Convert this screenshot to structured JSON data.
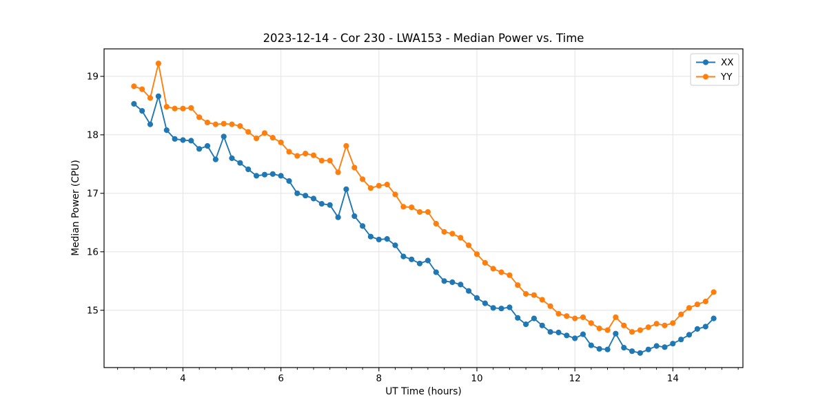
{
  "chart_data": {
    "type": "line",
    "title": "2023-12-14 - Cor 230 - LWA153 - Median Power vs. Time",
    "xlabel": "UT Time (hours)",
    "ylabel": "Median Power (CPU)",
    "xlim": [
      2.39,
      15.43
    ],
    "ylim": [
      14.02,
      19.47
    ],
    "x_major_ticks": [
      4,
      6,
      8,
      10,
      12,
      14
    ],
    "x_minor_tick_step": 0.33333,
    "y_major_ticks": [
      15,
      16,
      17,
      18,
      19
    ],
    "grid": true,
    "grid_color": "#e3e3e3",
    "legend": {
      "position": "upper right",
      "entries": [
        "XX",
        "YY"
      ]
    },
    "x": [
      3.0,
      3.167,
      3.333,
      3.5,
      3.667,
      3.833,
      4.0,
      4.167,
      4.333,
      4.5,
      4.667,
      4.833,
      5.0,
      5.167,
      5.333,
      5.5,
      5.667,
      5.833,
      6.0,
      6.167,
      6.333,
      6.5,
      6.667,
      6.833,
      7.0,
      7.167,
      7.333,
      7.5,
      7.667,
      7.833,
      8.0,
      8.167,
      8.333,
      8.5,
      8.667,
      8.833,
      9.0,
      9.167,
      9.333,
      9.5,
      9.667,
      9.833,
      10.0,
      10.167,
      10.333,
      10.5,
      10.667,
      10.833,
      11.0,
      11.167,
      11.333,
      11.5,
      11.667,
      11.833,
      12.0,
      12.167,
      12.333,
      12.5,
      12.667,
      12.833,
      13.0,
      13.167,
      13.333,
      13.5,
      13.667,
      13.833,
      14.0,
      14.167,
      14.333,
      14.5,
      14.667,
      14.833
    ],
    "series": [
      {
        "name": "XX",
        "color": "#1f77b4",
        "values": [
          18.53,
          18.41,
          18.18,
          18.66,
          18.08,
          17.93,
          17.91,
          17.9,
          17.76,
          17.81,
          17.58,
          17.97,
          17.6,
          17.52,
          17.41,
          17.3,
          17.32,
          17.33,
          17.3,
          17.21,
          17.0,
          16.96,
          16.91,
          16.82,
          16.8,
          16.59,
          17.07,
          16.61,
          16.44,
          16.26,
          16.21,
          16.22,
          16.11,
          15.92,
          15.87,
          15.8,
          15.85,
          15.65,
          15.5,
          15.48,
          15.44,
          15.33,
          15.21,
          15.12,
          15.04,
          15.03,
          15.05,
          14.87,
          14.76,
          14.86,
          14.74,
          14.63,
          14.62,
          14.57,
          14.52,
          14.59,
          14.4,
          14.34,
          14.33,
          14.6,
          14.36,
          14.3,
          14.27,
          14.33,
          14.39,
          14.37,
          14.43,
          14.5,
          14.58,
          14.68,
          14.72,
          14.86
        ]
      },
      {
        "name": "YY",
        "color": "#ff7f0e",
        "values": [
          18.83,
          18.78,
          18.63,
          19.22,
          18.48,
          18.45,
          18.45,
          18.46,
          18.3,
          18.21,
          18.18,
          18.19,
          18.18,
          18.15,
          18.05,
          17.94,
          18.03,
          17.95,
          17.87,
          17.71,
          17.64,
          17.68,
          17.65,
          17.56,
          17.56,
          17.36,
          17.81,
          17.44,
          17.24,
          17.09,
          17.13,
          17.15,
          16.98,
          16.77,
          16.76,
          16.68,
          16.68,
          16.48,
          16.34,
          16.31,
          16.24,
          16.11,
          15.96,
          15.81,
          15.71,
          15.65,
          15.6,
          15.43,
          15.28,
          15.26,
          15.18,
          15.07,
          14.94,
          14.9,
          14.86,
          14.88,
          14.78,
          14.69,
          14.66,
          14.88,
          14.74,
          14.63,
          14.66,
          14.71,
          14.77,
          14.74,
          14.78,
          14.93,
          15.04,
          15.1,
          15.15,
          15.31
        ]
      }
    ]
  }
}
